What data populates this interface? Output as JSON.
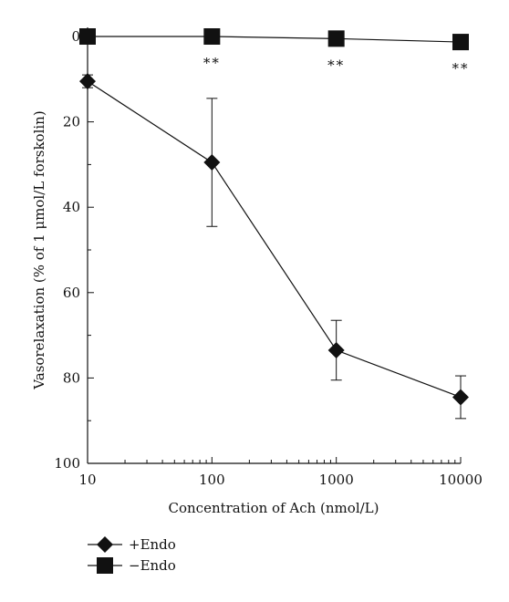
{
  "chart_data": {
    "type": "line",
    "xlabel": "Concentration of Ach (nmol/L)",
    "ylabel": "Vasorelaxation (% of 1 μmol/L forskolin)",
    "x_scale": "log",
    "y_inverted": true,
    "xlim": [
      10,
      10000
    ],
    "ylim": [
      0,
      100
    ],
    "x_ticks": [
      "10",
      "100",
      "1000",
      "10000"
    ],
    "y_ticks": [
      "0",
      "20",
      "40",
      "60",
      "80",
      "100"
    ],
    "x": [
      10,
      100,
      1000,
      10000
    ],
    "series": [
      {
        "name": "+Endo",
        "marker": "diamond",
        "values": [
          10.5,
          29.5,
          73.5,
          84.5
        ],
        "error": [
          1.5,
          15,
          7,
          5
        ]
      },
      {
        "name": "−Endo",
        "marker": "square",
        "values": [
          0,
          0,
          0.5,
          1.3
        ],
        "error": [
          1,
          0.5,
          0.5,
          1.3
        ]
      }
    ],
    "annotations": [
      "**",
      "**",
      "**"
    ],
    "annotation_x": [
      100,
      1000,
      10000
    ],
    "legend_position": "bottom-left",
    "grid": false
  }
}
